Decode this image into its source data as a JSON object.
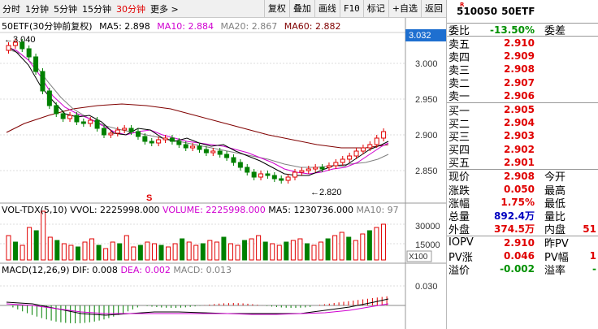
{
  "toolbar": {
    "periods": [
      "分时",
      "1分钟",
      "5分钟",
      "15分钟",
      "30分钟",
      "更多 >"
    ],
    "active_index": 4,
    "buttons": [
      "复权",
      "叠加",
      "画线",
      "F10",
      "标记",
      "+自选",
      "返回"
    ]
  },
  "main_legend": {
    "title": "50ETF(30分钟前复权)",
    "ma5": "MA5: 2.898",
    "ma10": "MA10: 2.884",
    "ma20": "MA20: 2.867",
    "ma60": "MA60: 2.882",
    "high_mark": "3.040",
    "low_mark": "2.820",
    "current_price_tag": "3.032",
    "y_ticks": [
      "3.000",
      "2.950",
      "2.900",
      "2.850"
    ]
  },
  "volume_legend": {
    "title": "VOL-TDX(5,10)",
    "vvol": "VVOL: 2225998.000",
    "volume": "VOLUME: 2225998.000",
    "ma5": "MA5: 1230736.000",
    "ma10": "MA10: 97",
    "y_ticks": [
      "30000",
      "15000"
    ],
    "unit": "X100"
  },
  "macd_legend": {
    "title": "MACD(12,26,9)",
    "dif": "DIF: 0.008",
    "dea": "DEA: 0.002",
    "macd": "MACD: 0.013",
    "y_tick": "0.030"
  },
  "quote": {
    "badge": "R",
    "code": "510050",
    "name": "50ETF",
    "weibi_label": "委比",
    "weibi_value": "-13.50%",
    "weicha_label": "委差",
    "sell": [
      {
        "label": "卖五",
        "price": "2.910"
      },
      {
        "label": "卖四",
        "price": "2.909"
      },
      {
        "label": "卖三",
        "price": "2.908"
      },
      {
        "label": "卖二",
        "price": "2.907"
      },
      {
        "label": "卖一",
        "price": "2.906"
      }
    ],
    "buy": [
      {
        "label": "买一",
        "price": "2.905"
      },
      {
        "label": "买二",
        "price": "2.904"
      },
      {
        "label": "买三",
        "price": "2.903"
      },
      {
        "label": "买四",
        "price": "2.902"
      },
      {
        "label": "买五",
        "price": "2.901"
      }
    ],
    "stats": [
      {
        "label": "现价",
        "value": "2.908",
        "label2": "今开",
        "value2": ""
      },
      {
        "label": "涨跌",
        "value": "0.050",
        "label2": "最高",
        "value2": ""
      },
      {
        "label": "涨幅",
        "value": "1.75%",
        "label2": "最低",
        "value2": ""
      },
      {
        "label": "总量",
        "value": "892.4万",
        "label2": "量比",
        "value2": ""
      },
      {
        "label": "外盘",
        "value": "374.5万",
        "label2": "内盘",
        "value2": "51"
      }
    ],
    "iopv": [
      {
        "label": "IOPV",
        "value": "2.910",
        "label2": "昨PV",
        "value2": ""
      },
      {
        "label": "PV涨",
        "value": "0.046",
        "label2": "PV幅",
        "value2": "1"
      },
      {
        "label": "溢价",
        "value": "-0.002",
        "label2": "溢率",
        "value2": "-"
      }
    ]
  }
}
